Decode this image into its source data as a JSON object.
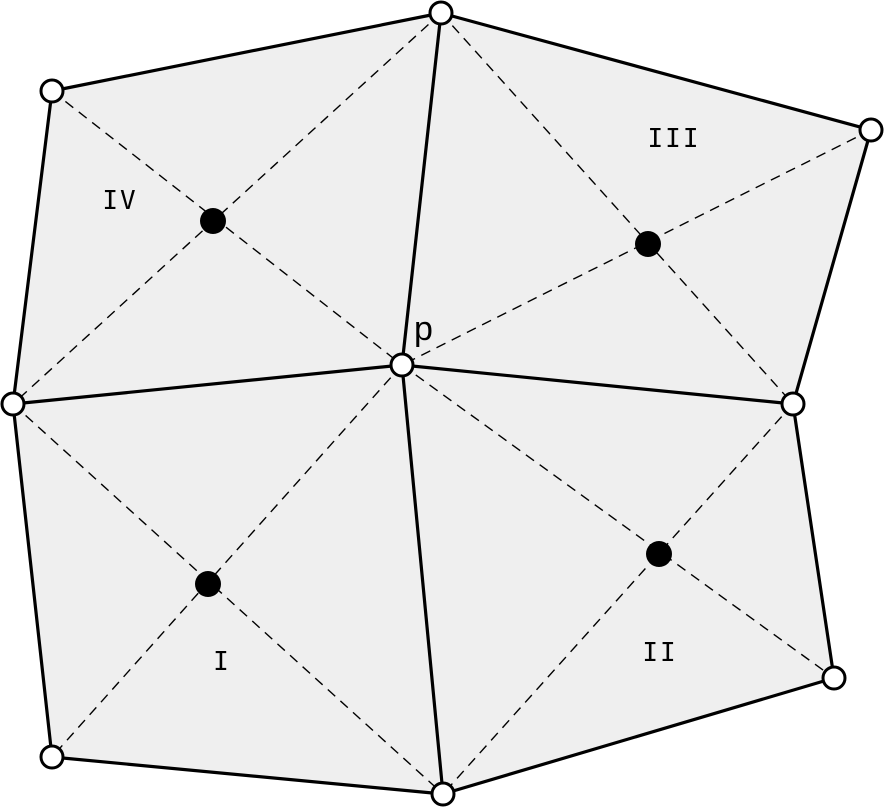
{
  "colors": {
    "fill": "#efefef",
    "edge": "#000000",
    "open_vertex_fill": "#ffffff",
    "center_dot": "#000000"
  },
  "labels": {
    "center_vertex": "p",
    "quad_1": "I",
    "quad_2": "II",
    "quad_3": "III",
    "quad_4": "IV"
  }
}
